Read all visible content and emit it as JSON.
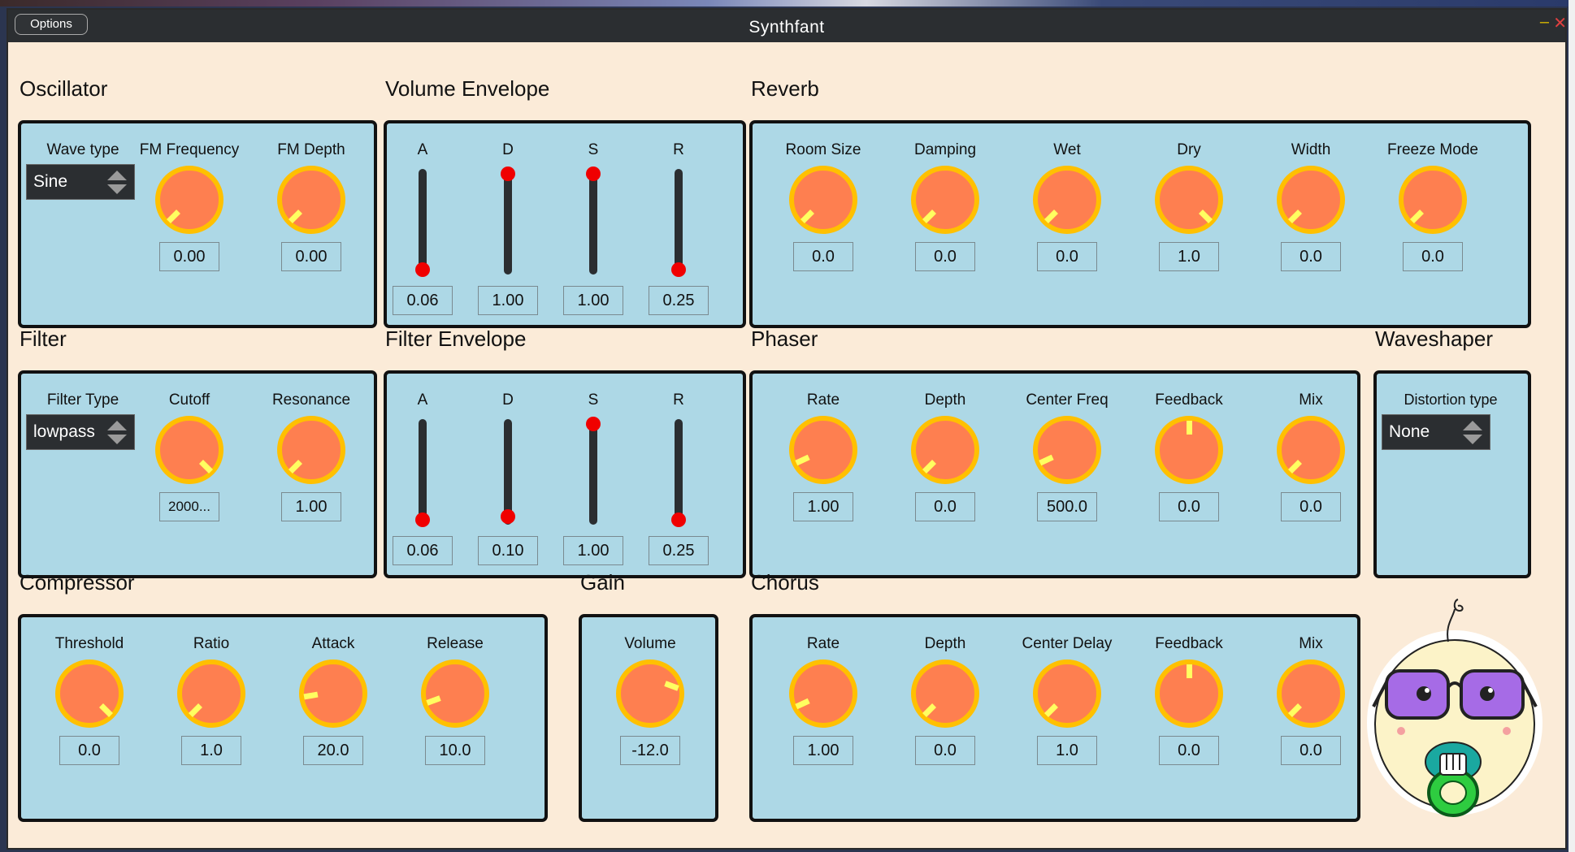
{
  "window": {
    "title": "Synthfant",
    "options_label": "Options",
    "minimize_glyph": "–",
    "close_glyph": "✕"
  },
  "colors": {
    "window_bg": "#fbebd8",
    "panel_bg": "#add8e6",
    "knob_fill": "#fe7f50",
    "knob_ring": "#ffc000",
    "slider_thumb": "#f00000",
    "titlebar": "#2b2e31"
  },
  "oscillator": {
    "title": "Oscillator",
    "wave_label": "Wave type",
    "wave_value": "Sine",
    "fm_freq_label": "FM Frequency",
    "fm_freq_value": "0.00",
    "fm_depth_label": "FM Depth",
    "fm_depth_value": "0.00"
  },
  "volume_envelope": {
    "title": "Volume Envelope",
    "a_label": "A",
    "a_value": "0.06",
    "a_level": 0.0,
    "d_label": "D",
    "d_value": "1.00",
    "d_level": 1.0,
    "s_label": "S",
    "s_value": "1.00",
    "s_level": 1.0,
    "r_label": "R",
    "r_value": "0.25",
    "r_level": 0.0
  },
  "reverb": {
    "title": "Reverb",
    "room_label": "Room Size",
    "room_value": "0.0",
    "damping_label": "Damping",
    "damping_value": "0.0",
    "wet_label": "Wet",
    "wet_value": "0.0",
    "dry_label": "Dry",
    "dry_value": "1.0",
    "width_label": "Width",
    "width_value": "0.0",
    "freeze_label": "Freeze Mode",
    "freeze_value": "0.0"
  },
  "filter": {
    "title": "Filter",
    "type_label": "Filter Type",
    "type_value": "lowpass",
    "cutoff_label": "Cutoff",
    "cutoff_value": "2000...",
    "resonance_label": "Resonance",
    "resonance_value": "1.00"
  },
  "filter_envelope": {
    "title": "Filter Envelope",
    "a_label": "A",
    "a_value": "0.06",
    "a_level": 0.0,
    "d_label": "D",
    "d_value": "0.10",
    "d_level": 0.03,
    "s_label": "S",
    "s_value": "1.00",
    "s_level": 1.0,
    "r_label": "R",
    "r_value": "0.25",
    "r_level": 0.0
  },
  "phaser": {
    "title": "Phaser",
    "rate_label": "Rate",
    "rate_value": "1.00",
    "depth_label": "Depth",
    "depth_value": "0.0",
    "center_label": "Center Freq",
    "center_value": "500.0",
    "feedback_label": "Feedback",
    "feedback_value": "0.0",
    "mix_label": "Mix",
    "mix_value": "0.0"
  },
  "waveshaper": {
    "title": "Waveshaper",
    "dist_label": "Distortion type",
    "dist_value": "None"
  },
  "compressor": {
    "title": "Compressor",
    "threshold_label": "Threshold",
    "threshold_value": "0.0",
    "ratio_label": "Ratio",
    "ratio_value": "1.0",
    "attack_label": "Attack",
    "attack_value": "20.0",
    "release_label": "Release",
    "release_value": "10.0"
  },
  "gain": {
    "title": "Gain",
    "volume_label": "Volume",
    "volume_value": "-12.0"
  },
  "chorus": {
    "title": "Chorus",
    "rate_label": "Rate",
    "rate_value": "1.00",
    "depth_label": "Depth",
    "depth_value": "0.0",
    "delay_label": "Center Delay",
    "delay_value": "1.0",
    "feedback_label": "Feedback",
    "feedback_value": "0.0",
    "mix_label": "Mix",
    "mix_value": "0.0"
  },
  "mascot": {
    "name": "baby-mascot"
  }
}
